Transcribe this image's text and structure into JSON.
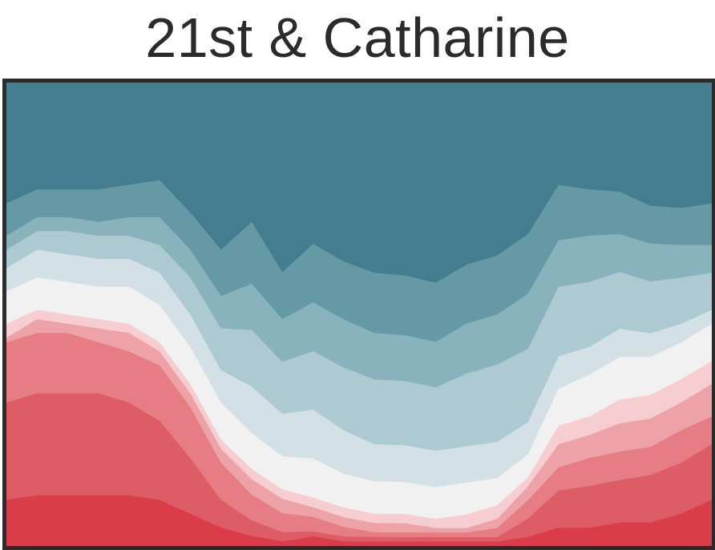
{
  "chart_data": {
    "type": "area",
    "title": "21st & Catharine",
    "xlabel": "",
    "ylabel": "",
    "grid": false,
    "legend": "none",
    "colors": [
      "#d93d4a",
      "#de5c66",
      "#e67c84",
      "#eda2a7",
      "#f6cdd0",
      "#f1f1f1",
      "#d3e1e6",
      "#adc9d1",
      "#88b2bc",
      "#6699a6",
      "#437d8f"
    ],
    "x": [
      0,
      1,
      2,
      3,
      4,
      5,
      6,
      7,
      8,
      9,
      10,
      11,
      12,
      13,
      14,
      15,
      16,
      17,
      18,
      19,
      20,
      21,
      22,
      23
    ],
    "series": [
      {
        "values": [
          10,
          11,
          11,
          11,
          11,
          10,
          7,
          4,
          2,
          1,
          2,
          1,
          1,
          1,
          1,
          1,
          1,
          2,
          4,
          4,
          5,
          5,
          7,
          10
        ]
      },
      {
        "values": [
          21,
          22,
          22,
          22,
          20,
          17,
          12,
          6,
          3,
          2,
          1,
          1,
          1,
          1,
          1,
          1,
          1,
          4,
          8,
          9,
          9,
          10,
          11,
          12
        ]
      },
      {
        "values": [
          13,
          13,
          13,
          11,
          11,
          12,
          11,
          8,
          5,
          4,
          3,
          2,
          1,
          1,
          1,
          1,
          2,
          4,
          5,
          6,
          6,
          6,
          7,
          6
        ]
      },
      {
        "values": [
          1,
          3,
          2,
          3,
          4,
          3,
          3,
          3,
          3,
          3,
          2,
          2,
          2,
          2,
          1,
          1,
          2,
          3,
          5,
          5,
          6,
          6,
          6,
          7
        ]
      },
      {
        "values": [
          3,
          2,
          2,
          2,
          2,
          2,
          2,
          2,
          2,
          2,
          2,
          2,
          2,
          2,
          2,
          3,
          3,
          2,
          4,
          4,
          5,
          5,
          5,
          5
        ]
      },
      {
        "values": [
          7,
          7,
          7,
          7,
          8,
          8,
          8,
          8,
          7,
          7,
          8,
          7,
          7,
          7,
          7,
          7,
          6,
          5,
          8,
          9,
          9,
          8,
          8,
          8
        ]
      },
      {
        "values": [
          5,
          6,
          6,
          6,
          6,
          7,
          7,
          7,
          9,
          9,
          10,
          9,
          8,
          8,
          8,
          8,
          8,
          7,
          7,
          6,
          6,
          5,
          4,
          3
        ]
      },
      {
        "values": [
          4,
          4,
          5,
          5,
          5,
          6,
          8,
          9,
          11,
          11,
          12,
          13,
          14,
          14,
          14,
          16,
          17,
          16,
          15,
          14,
          12,
          11,
          10,
          8
        ]
      },
      {
        "values": [
          3,
          3,
          3,
          3,
          4,
          6,
          6,
          7,
          9,
          9,
          10,
          10,
          10,
          10,
          10,
          11,
          11,
          12,
          10,
          10,
          8,
          8,
          7,
          6
        ]
      },
      {
        "values": [
          7,
          6,
          6,
          7,
          7,
          8,
          8,
          10,
          12,
          10,
          12,
          12,
          13,
          13,
          13,
          13,
          13,
          13,
          12,
          10,
          9,
          8,
          8,
          9
        ]
      },
      {
        "values": [
          26,
          23,
          23,
          23,
          22,
          21,
          28,
          36,
          27,
          40,
          33,
          37,
          41,
          42,
          44,
          40,
          38,
          33,
          22,
          23,
          23,
          26,
          27,
          26
        ]
      }
    ]
  }
}
